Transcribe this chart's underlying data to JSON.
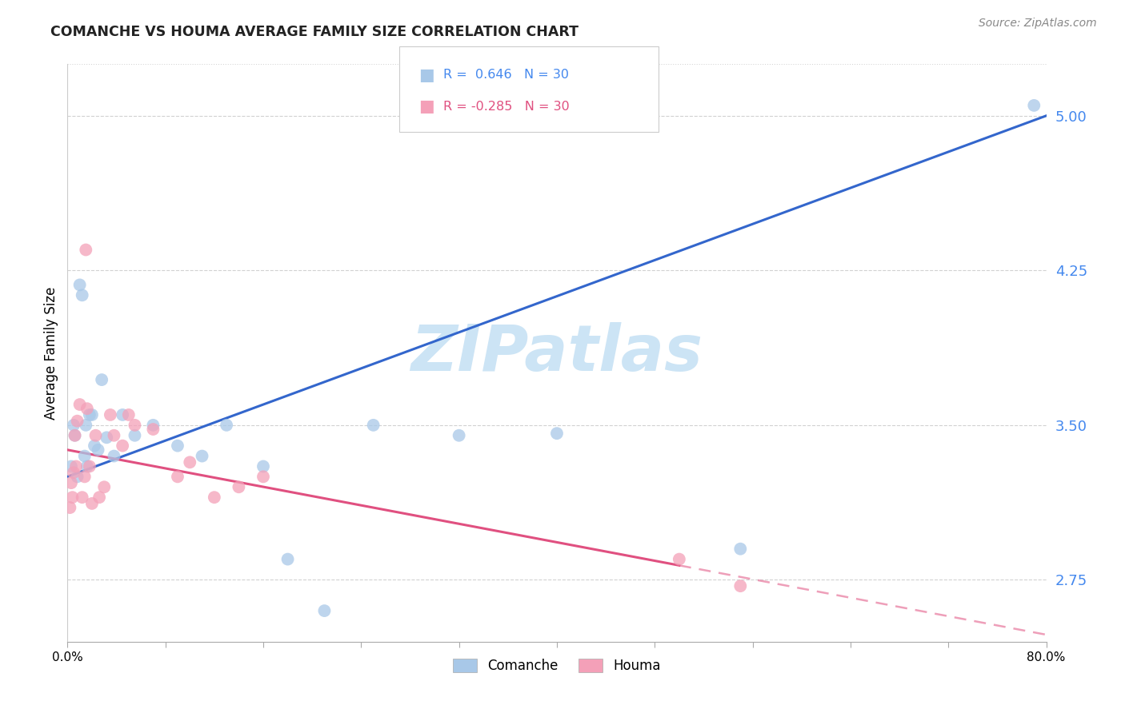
{
  "title": "COMANCHE VS HOUMA AVERAGE FAMILY SIZE CORRELATION CHART",
  "source": "Source: ZipAtlas.com",
  "ylabel": "Average Family Size",
  "background_color": "#ffffff",
  "comanche_color": "#a8c8e8",
  "houma_color": "#f4a0b8",
  "comanche_line_color": "#3366cc",
  "houma_line_color": "#e05080",
  "right_ytick_color": "#4488ee",
  "legend_r_comanche": "R =  0.646",
  "legend_n_comanche": "N = 30",
  "legend_r_houma": "R = -0.285",
  "legend_n_houma": "N = 30",
  "comanche_x": [
    0.3,
    0.5,
    0.6,
    0.8,
    1.0,
    1.2,
    1.4,
    1.5,
    1.6,
    1.8,
    2.0,
    2.2,
    2.5,
    2.8,
    3.2,
    3.8,
    4.5,
    5.5,
    7.0,
    9.0,
    11.0,
    13.0,
    16.0,
    18.0,
    21.0,
    25.0,
    32.0,
    40.0,
    55.0,
    79.0
  ],
  "comanche_y": [
    3.3,
    3.5,
    3.45,
    3.25,
    4.18,
    4.13,
    3.35,
    3.5,
    3.3,
    3.55,
    3.55,
    3.4,
    3.38,
    3.72,
    3.44,
    3.35,
    3.55,
    3.45,
    3.5,
    3.4,
    3.35,
    3.5,
    3.3,
    2.85,
    2.6,
    3.5,
    3.45,
    3.46,
    2.9,
    5.05
  ],
  "houma_x": [
    0.2,
    0.3,
    0.4,
    0.5,
    0.6,
    0.7,
    0.8,
    1.0,
    1.2,
    1.4,
    1.6,
    1.8,
    2.0,
    2.3,
    2.6,
    3.0,
    3.5,
    4.5,
    5.5,
    7.0,
    1.5,
    9.0,
    10.0,
    12.0,
    14.0,
    16.0,
    3.8,
    5.0,
    50.0,
    55.0
  ],
  "houma_y": [
    3.1,
    3.22,
    3.15,
    3.27,
    3.45,
    3.3,
    3.52,
    3.6,
    3.15,
    3.25,
    3.58,
    3.3,
    3.12,
    3.45,
    3.15,
    3.2,
    3.55,
    3.4,
    3.5,
    3.48,
    4.35,
    3.25,
    3.32,
    3.15,
    3.2,
    3.25,
    3.45,
    3.55,
    2.85,
    2.72
  ],
  "xlim": [
    0,
    80
  ],
  "ylim": [
    2.45,
    5.25
  ],
  "right_yticks": [
    2.75,
    3.5,
    4.25,
    5.0
  ],
  "xticks": [
    0,
    8,
    16,
    24,
    32,
    40,
    48,
    56,
    64,
    72,
    80
  ],
  "houma_solid_end": 50,
  "watermark": "ZIPatlas",
  "watermark_color": "#cce4f5",
  "watermark_fontsize": 58
}
